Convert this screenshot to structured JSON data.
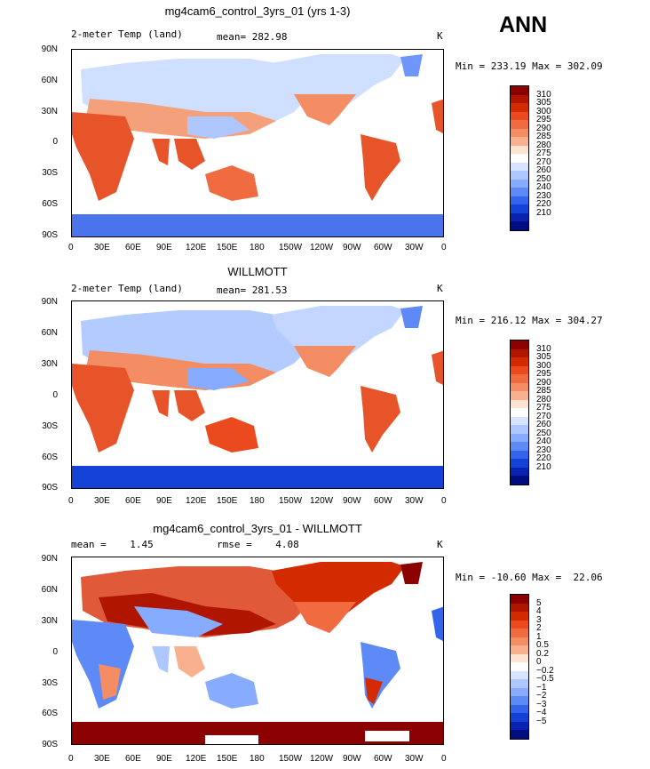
{
  "season": "ANN",
  "panels": [
    {
      "title": "mg4cam6_control_3yrs_01 (yrs 1-3)",
      "left_label": "2-meter Temp (land)",
      "center_label": "mean= 282.98",
      "units": "K",
      "minmax": "Min = 233.19 Max = 302.09"
    },
    {
      "title": "WILLMOTT",
      "left_label": "2-meter Temp (land)",
      "center_label": "mean= 281.53",
      "units": "K",
      "minmax": "Min = 216.12 Max = 304.27"
    },
    {
      "title": "mg4cam6_control_3yrs_01 - WILLMOTT",
      "left_label": "mean =    1.45",
      "center_label": "rmse =    4.08",
      "units": "K",
      "minmax": "Min = -10.60 Max =  22.06"
    }
  ],
  "lat_labels": [
    "90N",
    "60N",
    "30N",
    "0",
    "30S",
    "60S",
    "90S"
  ],
  "lon_labels": [
    "0",
    "30E",
    "60E",
    "90E",
    "120E",
    "150E",
    "180",
    "150W",
    "120W",
    "90W",
    "60W",
    "30W",
    "0"
  ],
  "colorbar_temp": {
    "levels": [
      "310",
      "305",
      "300",
      "295",
      "290",
      "285",
      "280",
      "275",
      "270",
      "260",
      "250",
      "240",
      "230",
      "220",
      "210"
    ],
    "colors": [
      "#8b0000",
      "#b01500",
      "#d42a00",
      "#ea4a1e",
      "#f06b40",
      "#f48c64",
      "#f8b08e",
      "#fde3d0",
      "#ffffff",
      "#d6e4ff",
      "#aec8ff",
      "#86abff",
      "#5e8af7",
      "#3464ea",
      "#1441d6",
      "#0a22b0",
      "#000d80"
    ]
  },
  "colorbar_diff": {
    "levels": [
      "5",
      "4",
      "3",
      "2",
      "1",
      "0.5",
      "0.2",
      "0",
      "−0.2",
      "−0.5",
      "−1",
      "−2",
      "−3",
      "−4",
      "−5"
    ],
    "colors": [
      "#8b0000",
      "#b01500",
      "#d42a00",
      "#ea4a1e",
      "#f06b40",
      "#f48c64",
      "#f8b08e",
      "#fde3d0",
      "#ffffff",
      "#d6e4ff",
      "#aec8ff",
      "#86abff",
      "#5e8af7",
      "#3464ea",
      "#1441d6",
      "#0a22b0",
      "#000d80"
    ]
  },
  "chart_data": [
    {
      "type": "heatmap",
      "title": "mg4cam6_control_3yrs_01 (yrs 1-3)",
      "variable": "2-meter Temp (land)",
      "mean": 282.98,
      "min": 233.19,
      "max": 302.09,
      "units": "K",
      "xlim": [
        0,
        360
      ],
      "ylim": [
        -90,
        90
      ]
    },
    {
      "type": "heatmap",
      "title": "WILLMOTT",
      "variable": "2-meter Temp (land)",
      "mean": 281.53,
      "min": 216.12,
      "max": 304.27,
      "units": "K",
      "xlim": [
        0,
        360
      ],
      "ylim": [
        -90,
        90
      ]
    },
    {
      "type": "heatmap",
      "title": "mg4cam6_control_3yrs_01 - WILLMOTT",
      "mean": 1.45,
      "rmse": 4.08,
      "min": -10.6,
      "max": 22.06,
      "units": "K",
      "xlim": [
        0,
        360
      ],
      "ylim": [
        -90,
        90
      ]
    }
  ]
}
